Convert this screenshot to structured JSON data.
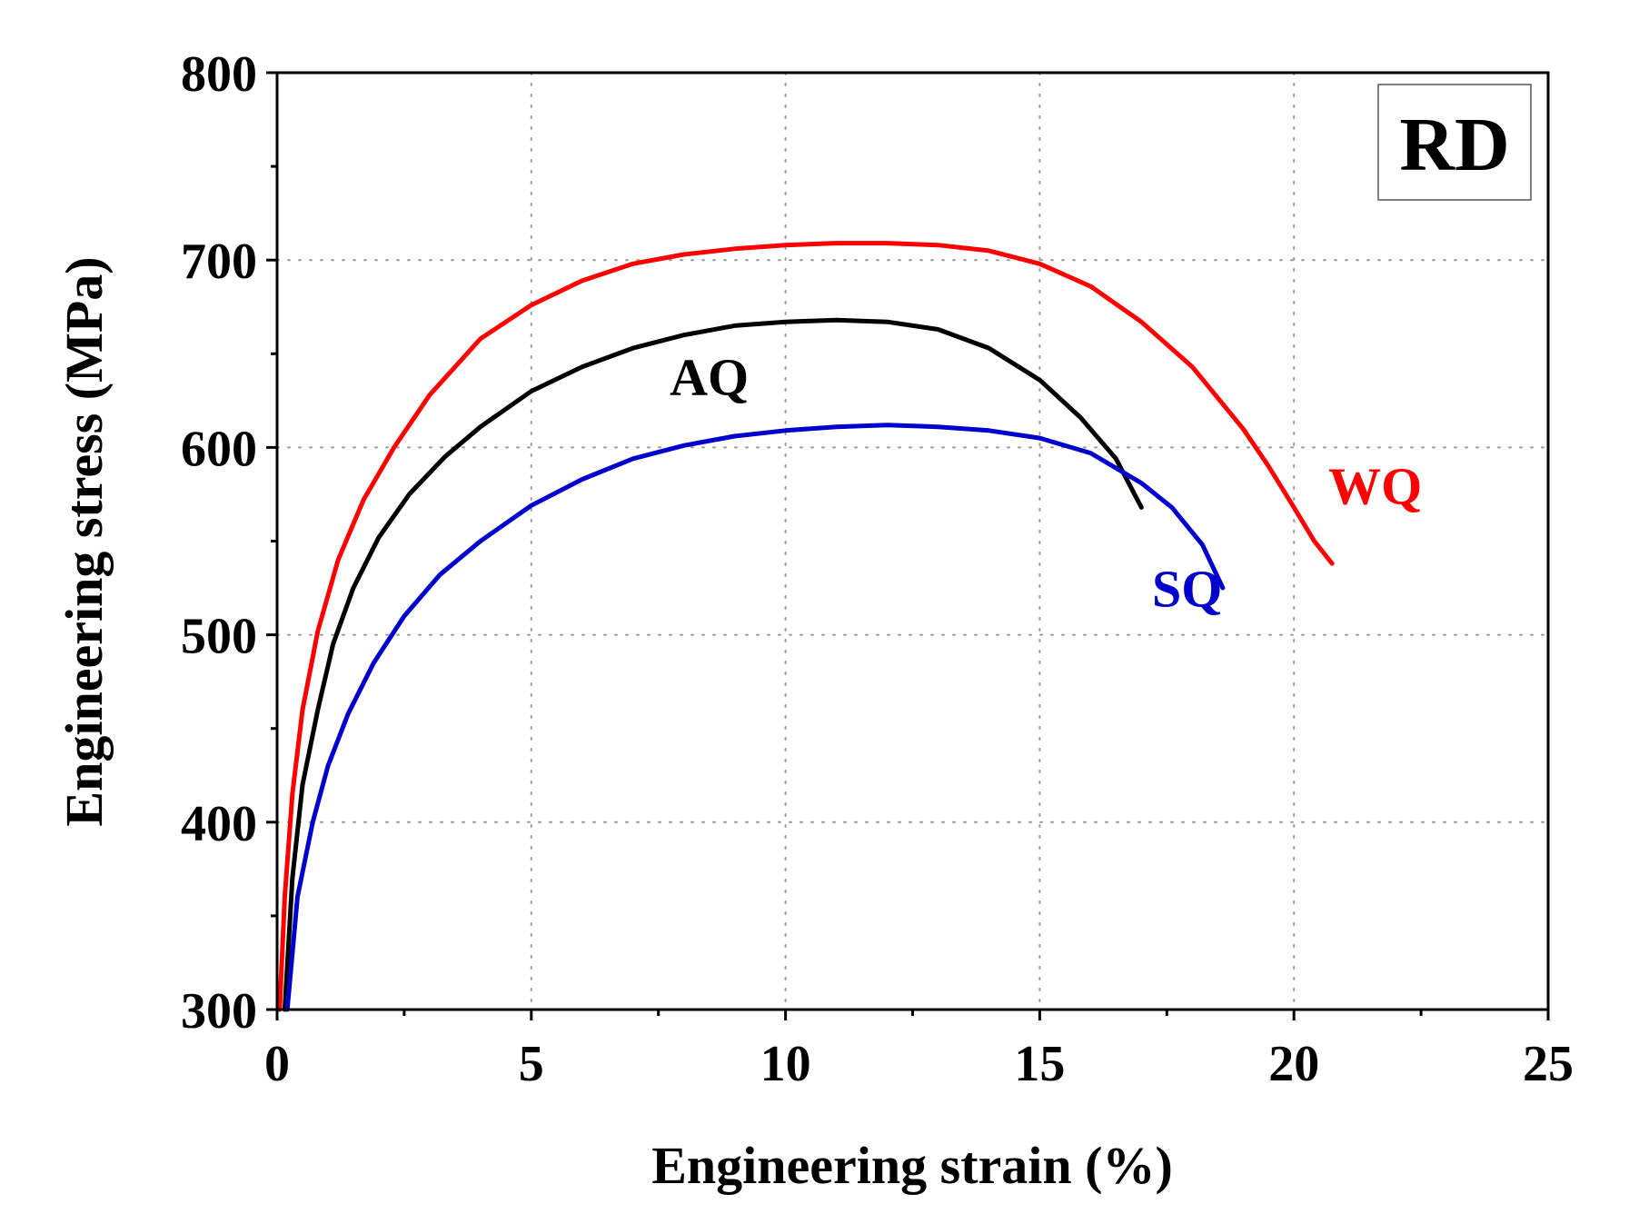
{
  "chart_data": {
    "type": "line",
    "xlabel": "Engineering strain (%)",
    "ylabel": "Engineering stress (MPa)",
    "xlim": [
      0,
      25
    ],
    "ylim": [
      300,
      800
    ],
    "x_ticks": [
      0,
      5,
      10,
      15,
      20,
      25
    ],
    "y_ticks": [
      300,
      400,
      500,
      600,
      700,
      800
    ],
    "x_tick_labels": [
      "0",
      "5",
      "10",
      "15",
      "20",
      "25"
    ],
    "y_tick_labels": [
      "300",
      "400",
      "500",
      "600",
      "700",
      "800"
    ],
    "grid": true,
    "annotation": "RD",
    "series": [
      {
        "name": "WQ",
        "color": "#ff0000",
        "x": [
          0.05,
          0.15,
          0.3,
          0.5,
          0.8,
          1.2,
          1.7,
          2.3,
          3.0,
          4.0,
          5.0,
          6.0,
          7.0,
          8.0,
          9.0,
          10.0,
          11.0,
          12.0,
          13.0,
          14.0,
          15.0,
          16.0,
          17.0,
          18.0,
          19.0,
          19.5,
          20.0,
          20.4,
          20.75
        ],
        "y": [
          300,
          360,
          415,
          460,
          502,
          540,
          572,
          600,
          628,
          658,
          676,
          689,
          698,
          703,
          706,
          708,
          709,
          709,
          708,
          705,
          698,
          686,
          667,
          643,
          610,
          590,
          568,
          550,
          538
        ]
      },
      {
        "name": "AQ",
        "color": "#000000",
        "x": [
          0.15,
          0.3,
          0.5,
          0.8,
          1.1,
          1.5,
          2.0,
          2.6,
          3.3,
          4.0,
          5.0,
          6.0,
          7.0,
          8.0,
          9.0,
          10.0,
          11.0,
          12.0,
          13.0,
          14.0,
          15.0,
          15.8,
          16.5,
          17.0
        ],
        "y": [
          300,
          370,
          420,
          460,
          495,
          525,
          552,
          575,
          595,
          611,
          630,
          643,
          653,
          660,
          665,
          667,
          668,
          667,
          663,
          653,
          636,
          616,
          594,
          568
        ]
      },
      {
        "name": "SQ",
        "color": "#0000cc",
        "x": [
          0.2,
          0.4,
          0.7,
          1.0,
          1.4,
          1.9,
          2.5,
          3.2,
          4.0,
          5.0,
          6.0,
          7.0,
          8.0,
          9.0,
          10.0,
          11.0,
          12.0,
          13.0,
          14.0,
          15.0,
          16.0,
          17.0,
          17.6,
          18.2,
          18.6
        ],
        "y": [
          300,
          360,
          400,
          430,
          458,
          485,
          510,
          532,
          550,
          569,
          583,
          594,
          601,
          606,
          609,
          611,
          612,
          611,
          609,
          605,
          597,
          581,
          568,
          548,
          525
        ]
      }
    ]
  }
}
